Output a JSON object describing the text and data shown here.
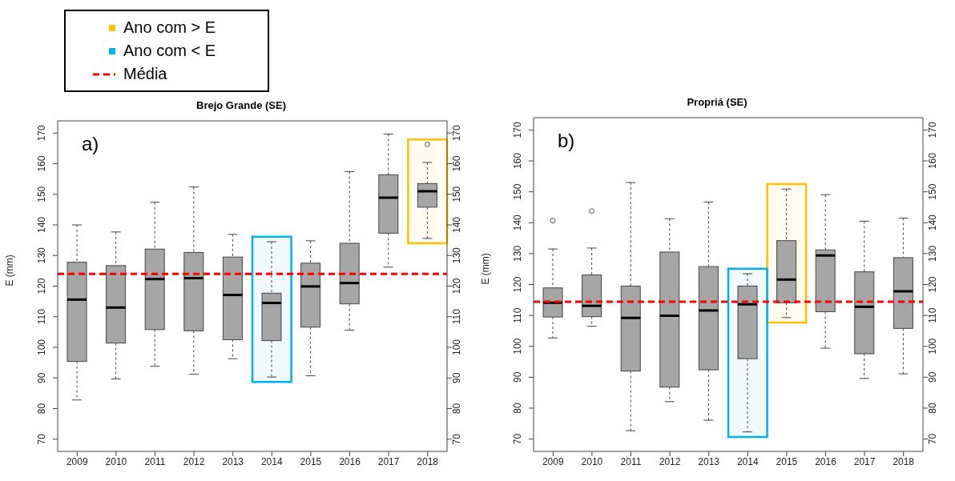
{
  "chart_data": [
    {
      "type": "box",
      "title": "Brejo Grande (SE)",
      "ylabel": "E (mm)",
      "annotations": [
        "a)"
      ],
      "categories": [
        "2009",
        "2010",
        "2011",
        "2012",
        "2013",
        "2014",
        "2015",
        "2016",
        "2017",
        "2018"
      ],
      "ylim": [
        66,
        174
      ],
      "yticks": [
        70,
        80,
        90,
        100,
        110,
        120,
        130,
        140,
        150,
        160,
        170
      ],
      "y2lim": [
        66,
        174
      ],
      "y2ticks": [
        70,
        80,
        90,
        100,
        110,
        120,
        130,
        140,
        150,
        160,
        170
      ],
      "legend": "top left",
      "series": [
        {
          "color": "#a6a6a6",
          "boxes": [
            {
              "low": 82.8,
              "q1": 95.4,
              "median": 115.6,
              "q3": 127.8,
              "high": 140
            },
            {
              "low": 89.7,
              "q1": 101.4,
              "median": 113,
              "q3": 126.7,
              "high": 137.7
            },
            {
              "low": 93.8,
              "q1": 105.8,
              "median": 122.3,
              "q3": 132.1,
              "high": 147.4
            },
            {
              "low": 91.2,
              "q1": 105.4,
              "median": 122.6,
              "q3": 131,
              "high": 152.4
            },
            {
              "low": 96.3,
              "q1": 102.5,
              "median": 117.1,
              "q3": 129.5,
              "high": 136.9
            },
            {
              "low": 90.3,
              "q1": 102.2,
              "median": 114.5,
              "q3": 117.7,
              "high": 134.5
            },
            {
              "low": 90.7,
              "q1": 106.6,
              "median": 119.9,
              "q3": 127.5,
              "high": 134.8
            },
            {
              "low": 105.6,
              "q1": 114.2,
              "median": 121,
              "q3": 134,
              "high": 157.4
            },
            {
              "low": 126.2,
              "q1": 137.3,
              "median": 148.9,
              "q3": 156.4,
              "high": 169.7
            },
            {
              "low": 135.6,
              "q1": 145.8,
              "median": 151,
              "q3": 153.5,
              "high": 160.4,
              "outliers": [
                166.3
              ]
            }
          ]
        }
      ],
      "bands": [
        {
          "axis": "x",
          "from": "2018",
          "to": "2018",
          "label": "Ano com > E",
          "color": "#ffc000"
        },
        {
          "axis": "x",
          "from": "2014",
          "to": "2014",
          "label": "Ano com < E",
          "color": "#00b0f0"
        }
      ],
      "ref_lines": [
        {
          "axis": "y",
          "value": 124,
          "label": "Média",
          "color": "#ff0000",
          "line_style": "dashed"
        }
      ]
    },
    {
      "type": "box",
      "title": "Propriá (SE)",
      "ylabel": "E (mm)",
      "annotations": [
        "b)"
      ],
      "categories": [
        "2009",
        "2010",
        "2011",
        "2012",
        "2013",
        "2014",
        "2015",
        "2016",
        "2017",
        "2018"
      ],
      "ylim": [
        66,
        174
      ],
      "yticks": [
        70,
        80,
        90,
        100,
        110,
        120,
        130,
        140,
        150,
        160,
        170
      ],
      "y2lim": [
        66,
        174
      ],
      "y2ticks": [
        70,
        80,
        90,
        100,
        110,
        120,
        130,
        140,
        150,
        160,
        170
      ],
      "series": [
        {
          "color": "#a6a6a6",
          "boxes": [
            {
              "low": 102.7,
              "q1": 109.5,
              "median": 114.1,
              "q3": 118.9,
              "high": 131.5,
              "outliers": [
                140.7
              ]
            },
            {
              "low": 106.5,
              "q1": 109.6,
              "median": 113.1,
              "q3": 123.1,
              "high": 131.8,
              "outliers": [
                143.8
              ]
            },
            {
              "low": 72.7,
              "q1": 92,
              "median": 109.2,
              "q3": 119.5,
              "high": 153
            },
            {
              "low": 82.1,
              "q1": 86.8,
              "median": 109.9,
              "q3": 130.5,
              "high": 141.3
            },
            {
              "low": 76.1,
              "q1": 92.4,
              "median": 111.6,
              "q3": 125.8,
              "high": 146.7
            },
            {
              "low": 72.3,
              "q1": 96,
              "median": 113.6,
              "q3": 119.5,
              "high": 123.5
            },
            {
              "low": 109.3,
              "q1": 114.1,
              "median": 121.6,
              "q3": 134.2,
              "high": 150.9
            },
            {
              "low": 99.4,
              "q1": 111.2,
              "median": 129.4,
              "q3": 131.2,
              "high": 149.1
            },
            {
              "low": 89.6,
              "q1": 97.6,
              "median": 112.8,
              "q3": 124.1,
              "high": 140.5
            },
            {
              "low": 91.1,
              "q1": 105.8,
              "median": 117.8,
              "q3": 128.7,
              "high": 141.5
            }
          ]
        }
      ],
      "bands": [
        {
          "axis": "x",
          "from": "2015",
          "to": "2015",
          "color": "#ffc000"
        },
        {
          "axis": "x",
          "from": "2014",
          "to": "2014",
          "color": "#00b0f0"
        }
      ],
      "ref_lines": [
        {
          "axis": "y",
          "value": 114.4,
          "color": "#ff0000",
          "line_style": "dashed"
        }
      ]
    }
  ]
}
